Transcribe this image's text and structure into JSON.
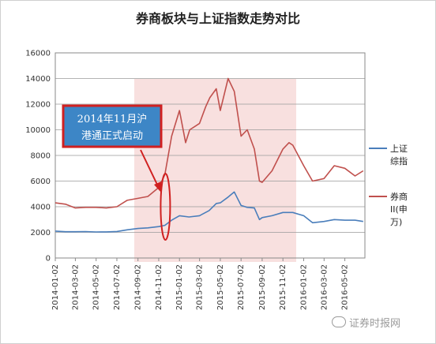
{
  "chart_data": {
    "type": "line",
    "title": "券商板块与上证指数走势对比",
    "xlabel": "",
    "ylabel": "",
    "ylim": [
      0,
      16000
    ],
    "yticks": [
      "0",
      "2000",
      "4000",
      "6000",
      "8000",
      "10000",
      "12000",
      "14000",
      "16000"
    ],
    "xticks": [
      "2014-01-02",
      "2014-03-02",
      "2014-05-02",
      "2014-07-02",
      "2014-09-02",
      "2014-11-02",
      "2015-01-02",
      "2015-03-02",
      "2015-05-02",
      "2015-07-02",
      "2015-09-02",
      "2015-11-02",
      "2016-01-02",
      "2016-03-02",
      "2016-05-02"
    ],
    "grid": "horizontal",
    "legend_position": "right",
    "series": [
      {
        "name": "上证综指",
        "color": "#4a7ebb",
        "x": [
          "2014-01-02",
          "2014-02-01",
          "2014-03-02",
          "2014-04-01",
          "2014-05-02",
          "2014-06-01",
          "2014-07-02",
          "2014-08-01",
          "2014-09-02",
          "2014-10-01",
          "2014-11-02",
          "2014-11-20",
          "2014-12-10",
          "2015-01-02",
          "2015-01-30",
          "2015-03-02",
          "2015-03-30",
          "2015-04-20",
          "2015-05-02",
          "2015-05-25",
          "2015-06-12",
          "2015-07-02",
          "2015-07-20",
          "2015-08-10",
          "2015-08-25",
          "2015-09-02",
          "2015-10-01",
          "2015-11-02",
          "2015-12-01",
          "2016-01-02",
          "2016-01-28",
          "2016-03-02",
          "2016-04-01",
          "2016-05-02",
          "2016-06-01",
          "2016-06-25"
        ],
        "y": [
          2100,
          2050,
          2050,
          2060,
          2030,
          2040,
          2070,
          2200,
          2300,
          2350,
          2450,
          2550,
          2950,
          3300,
          3200,
          3300,
          3700,
          4250,
          4300,
          4750,
          5150,
          4100,
          3950,
          3900,
          3000,
          3150,
          3300,
          3550,
          3550,
          3300,
          2750,
          2850,
          3000,
          2950,
          2950,
          2850
        ]
      },
      {
        "name": "券商II(申万)",
        "color": "#c0504d",
        "x": [
          "2014-01-02",
          "2014-02-01",
          "2014-03-02",
          "2014-04-01",
          "2014-05-02",
          "2014-06-01",
          "2014-07-02",
          "2014-08-01",
          "2014-09-02",
          "2014-10-01",
          "2014-11-02",
          "2014-11-20",
          "2014-12-10",
          "2015-01-02",
          "2015-01-20",
          "2015-02-01",
          "2015-03-02",
          "2015-03-20",
          "2015-04-01",
          "2015-04-20",
          "2015-05-02",
          "2015-05-25",
          "2015-06-12",
          "2015-07-02",
          "2015-07-20",
          "2015-08-10",
          "2015-08-25",
          "2015-09-02",
          "2015-10-01",
          "2015-11-02",
          "2015-11-20",
          "2015-12-01",
          "2016-01-02",
          "2016-01-28",
          "2016-03-02",
          "2016-04-01",
          "2016-05-02",
          "2016-06-01",
          "2016-06-25"
        ],
        "y": [
          4300,
          4200,
          3900,
          3950,
          3950,
          3900,
          4000,
          4500,
          4650,
          4800,
          5500,
          6500,
          9500,
          11500,
          9000,
          10000,
          10500,
          11800,
          12500,
          13200,
          11500,
          14000,
          13000,
          9500,
          10000,
          8500,
          6000,
          5900,
          6800,
          8500,
          9000,
          8800,
          7200,
          6000,
          6200,
          7200,
          7000,
          6400,
          6800
        ]
      }
    ],
    "annotations": [
      {
        "text_line1": "2014年11月沪",
        "text_line2": "港通正式启动",
        "date": "2014-11-17"
      }
    ]
  },
  "watermark": {
    "text": "证券时报网",
    "icon": "wechat-icon"
  }
}
